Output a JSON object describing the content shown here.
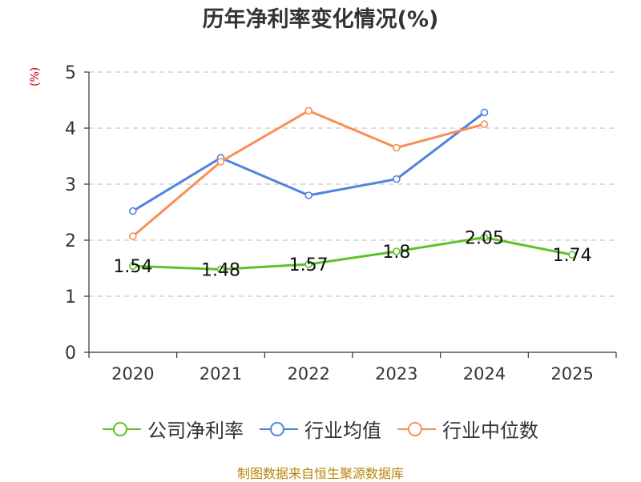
{
  "chart_data": {
    "type": "line",
    "title": "历年净利率变化情况(%)",
    "ylabel": "(%)",
    "categories": [
      "2020",
      "2021",
      "2022",
      "2023",
      "2024",
      "2025"
    ],
    "ylim": [
      0,
      5
    ],
    "yticks": [
      0,
      1,
      2,
      3,
      4,
      5
    ],
    "grid": true,
    "legend_position": "bottom",
    "series": [
      {
        "name": "公司净利率",
        "color": "#5dc326",
        "values": [
          1.54,
          1.48,
          1.57,
          1.8,
          2.05,
          1.74
        ],
        "labels": [
          "1.54",
          "1.48",
          "1.57",
          "1.8",
          "2.05",
          "1.74"
        ]
      },
      {
        "name": "行业均值",
        "color": "#5083dc",
        "values": [
          2.52,
          3.47,
          2.8,
          3.09,
          4.28,
          null
        ]
      },
      {
        "name": "行业中位数",
        "color": "#f98f57",
        "values": [
          2.07,
          3.4,
          4.31,
          3.65,
          4.07,
          null
        ]
      }
    ],
    "source": "制图数据来自恒生聚源数据库"
  }
}
